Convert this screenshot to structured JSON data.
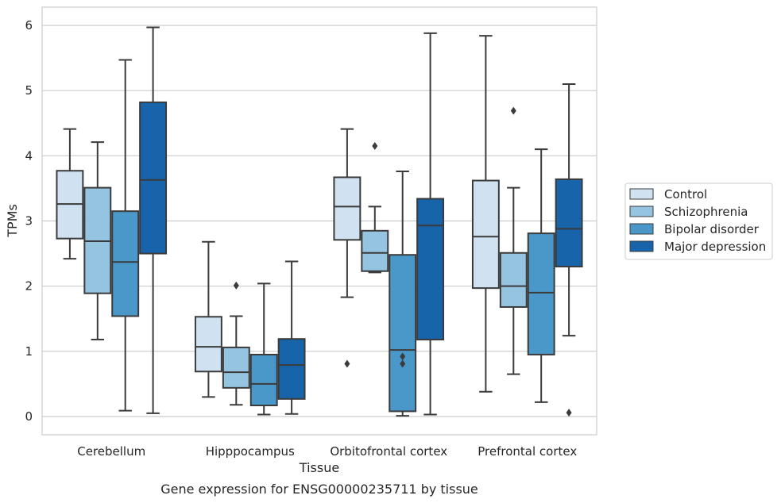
{
  "caption": "Gene expression for ENSG00000235711 by tissue",
  "chart_data": {
    "type": "box",
    "xlabel": "Tissue",
    "ylabel": "TPMs",
    "ylim": [
      -0.28,
      6.28
    ],
    "yticks": [
      0,
      1,
      2,
      3,
      4,
      5,
      6
    ],
    "grid": "horizontal",
    "legend_position": "right",
    "categories": [
      "Cerebellum",
      "Hipppocampus",
      "Orbitofrontal cortex",
      "Prefrontal cortex"
    ],
    "series": [
      {
        "name": "Control",
        "color": "#d0e1f2",
        "boxes": [
          {
            "min": 2.42,
            "q1": 2.73,
            "median": 3.26,
            "q3": 3.77,
            "max": 4.41,
            "outliers": []
          },
          {
            "min": 0.3,
            "q1": 0.69,
            "median": 1.07,
            "q3": 1.53,
            "max": 2.68,
            "outliers": []
          },
          {
            "min": 1.83,
            "q1": 2.71,
            "median": 3.22,
            "q3": 3.67,
            "max": 4.41,
            "outliers": [
              0.81
            ]
          },
          {
            "min": 0.38,
            "q1": 1.97,
            "median": 2.76,
            "q3": 3.62,
            "max": 5.84,
            "outliers": []
          }
        ]
      },
      {
        "name": "Schizophrenia",
        "color": "#94c4df",
        "boxes": [
          {
            "min": 1.18,
            "q1": 1.89,
            "median": 2.69,
            "q3": 3.51,
            "max": 4.21,
            "outliers": []
          },
          {
            "min": 0.18,
            "q1": 0.44,
            "median": 0.68,
            "q3": 1.06,
            "max": 1.54,
            "outliers": [
              2.01
            ]
          },
          {
            "min": 2.21,
            "q1": 2.23,
            "median": 2.51,
            "q3": 2.85,
            "max": 3.22,
            "outliers": [
              4.15
            ]
          },
          {
            "min": 0.65,
            "q1": 1.68,
            "median": 2.0,
            "q3": 2.51,
            "max": 3.51,
            "outliers": [
              4.69
            ]
          }
        ]
      },
      {
        "name": "Bipolar disorder",
        "color": "#4a98c9",
        "boxes": [
          {
            "min": 0.09,
            "q1": 1.54,
            "median": 2.37,
            "q3": 3.15,
            "max": 5.47,
            "outliers": []
          },
          {
            "min": 0.03,
            "q1": 0.17,
            "median": 0.5,
            "q3": 0.95,
            "max": 2.04,
            "outliers": []
          },
          {
            "min": 0.01,
            "q1": 0.08,
            "median": 1.02,
            "q3": 2.48,
            "max": 3.76,
            "outliers": [
              0.81,
              0.92
            ]
          },
          {
            "min": 0.22,
            "q1": 0.95,
            "median": 1.9,
            "q3": 2.81,
            "max": 4.1,
            "outliers": []
          }
        ]
      },
      {
        "name": "Major depression",
        "color": "#1764ab",
        "boxes": [
          {
            "min": 0.05,
            "q1": 2.5,
            "median": 3.63,
            "q3": 4.82,
            "max": 5.97,
            "outliers": []
          },
          {
            "min": 0.04,
            "q1": 0.27,
            "median": 0.79,
            "q3": 1.19,
            "max": 2.38,
            "outliers": []
          },
          {
            "min": 0.03,
            "q1": 1.18,
            "median": 2.93,
            "q3": 3.34,
            "max": 5.88,
            "outliers": []
          },
          {
            "min": 1.24,
            "q1": 2.3,
            "median": 2.88,
            "q3": 3.64,
            "max": 5.1,
            "outliers": [
              0.06
            ]
          }
        ]
      }
    ]
  }
}
